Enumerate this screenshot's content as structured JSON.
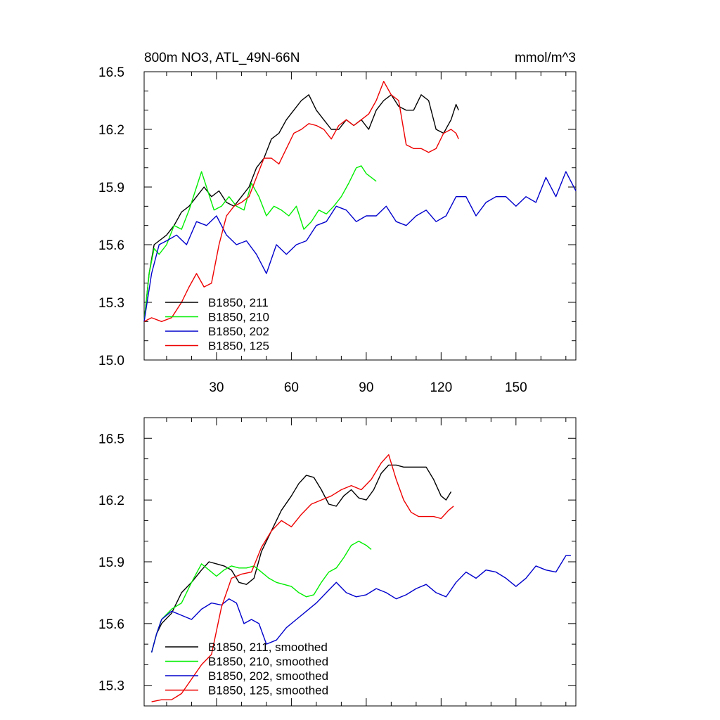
{
  "chart_data": [
    {
      "type": "line",
      "title": "800m NO3, ATL_49N-66N",
      "units": "mmol/m^3",
      "xlabel": "",
      "ylabel": "",
      "xlim": [
        1,
        174
      ],
      "ylim": [
        15.0,
        16.5
      ],
      "yticks": [
        "15.0",
        "15.3",
        "15.6",
        "15.9",
        "16.2",
        "16.5"
      ],
      "xticks": [
        "30",
        "60",
        "90",
        "120",
        "150"
      ],
      "xtick_values": [
        30,
        60,
        90,
        120,
        150
      ],
      "ytick_values": [
        15.0,
        15.3,
        15.6,
        15.9,
        16.2,
        16.5
      ],
      "legend_position": "bottom-left",
      "series": [
        {
          "name": "B1850, 211",
          "color": "#000000",
          "x": [
            1,
            3,
            5,
            7,
            10,
            13,
            16,
            19,
            22,
            25,
            28,
            31,
            34,
            37,
            40,
            43,
            46,
            49,
            52,
            55,
            58,
            61,
            64,
            67,
            70,
            73,
            76,
            79,
            82,
            85,
            88,
            91,
            94,
            97,
            100,
            103,
            106,
            109,
            112,
            115,
            118,
            121,
            124,
            126,
            127
          ],
          "values": [
            15.2,
            15.45,
            15.6,
            15.62,
            15.65,
            15.7,
            15.77,
            15.8,
            15.85,
            15.9,
            15.85,
            15.88,
            15.82,
            15.8,
            15.85,
            15.9,
            16.0,
            16.05,
            16.15,
            16.18,
            16.25,
            16.3,
            16.35,
            16.38,
            16.3,
            16.25,
            16.2,
            16.2,
            16.25,
            16.22,
            16.25,
            16.2,
            16.3,
            16.35,
            16.38,
            16.32,
            16.3,
            16.3,
            16.38,
            16.35,
            16.2,
            16.18,
            16.25,
            16.33,
            16.3
          ]
        },
        {
          "name": "B1850, 210",
          "color": "#00ee00",
          "x": [
            1,
            3,
            5,
            7,
            10,
            13,
            16,
            19,
            22,
            24,
            26,
            29,
            32,
            35,
            38,
            41,
            44,
            47,
            50,
            53,
            56,
            59,
            62,
            65,
            68,
            71,
            74,
            77,
            80,
            83,
            86,
            88,
            90,
            92,
            94
          ],
          "values": [
            15.2,
            15.45,
            15.58,
            15.55,
            15.6,
            15.7,
            15.68,
            15.78,
            15.9,
            15.98,
            15.9,
            15.78,
            15.8,
            15.85,
            15.8,
            15.78,
            15.92,
            15.85,
            15.75,
            15.8,
            15.78,
            15.75,
            15.8,
            15.68,
            15.72,
            15.78,
            15.76,
            15.8,
            15.85,
            15.92,
            16.0,
            16.01,
            15.97,
            15.95,
            15.93
          ]
        },
        {
          "name": "B1850, 202",
          "color": "#0000cc",
          "x": [
            1,
            4,
            7,
            10,
            14,
            18,
            22,
            26,
            30,
            34,
            38,
            42,
            46,
            50,
            54,
            58,
            62,
            66,
            70,
            74,
            78,
            82,
            86,
            90,
            94,
            98,
            102,
            106,
            110,
            114,
            118,
            122,
            126,
            130,
            134,
            138,
            142,
            146,
            150,
            154,
            158,
            162,
            166,
            170,
            174
          ],
          "values": [
            15.2,
            15.45,
            15.6,
            15.62,
            15.65,
            15.6,
            15.72,
            15.7,
            15.75,
            15.65,
            15.6,
            15.62,
            15.55,
            15.45,
            15.6,
            15.55,
            15.6,
            15.62,
            15.7,
            15.72,
            15.8,
            15.78,
            15.72,
            15.75,
            15.75,
            15.8,
            15.72,
            15.7,
            15.75,
            15.78,
            15.72,
            15.75,
            15.85,
            15.85,
            15.75,
            15.82,
            15.85,
            15.85,
            15.8,
            15.85,
            15.82,
            15.95,
            15.85,
            15.98,
            15.88
          ]
        },
        {
          "name": "B1850, 125",
          "color": "#ee0000",
          "x": [
            1,
            4,
            8,
            12,
            16,
            19,
            22,
            25,
            28,
            31,
            34,
            37,
            40,
            43,
            46,
            49,
            52,
            55,
            58,
            61,
            64,
            67,
            70,
            73,
            76,
            79,
            82,
            85,
            88,
            91,
            94,
            97,
            100,
            103,
            106,
            109,
            112,
            115,
            118,
            121,
            124,
            126,
            127
          ],
          "values": [
            15.2,
            15.22,
            15.2,
            15.22,
            15.3,
            15.38,
            15.45,
            15.38,
            15.4,
            15.6,
            15.75,
            15.8,
            15.82,
            15.85,
            15.95,
            16.05,
            16.05,
            16.02,
            16.1,
            16.18,
            16.2,
            16.23,
            16.22,
            16.2,
            16.15,
            16.22,
            16.25,
            16.22,
            16.25,
            16.28,
            16.35,
            16.45,
            16.38,
            16.35,
            16.12,
            16.1,
            16.1,
            16.08,
            16.1,
            16.18,
            16.2,
            16.18,
            16.15
          ]
        }
      ]
    },
    {
      "type": "line",
      "title": "",
      "units": "",
      "xlabel": "",
      "ylabel": "",
      "xlim": [
        1,
        174
      ],
      "ylim": [
        15.2,
        16.6
      ],
      "yticks": [
        "15.3",
        "15.6",
        "15.9",
        "16.2",
        "16.5"
      ],
      "ytick_values": [
        15.3,
        15.6,
        15.9,
        16.2,
        16.5
      ],
      "xtick_values": [
        30,
        60,
        90,
        120,
        150
      ],
      "legend_position": "bottom-left",
      "series": [
        {
          "name": "B1850, 211, smoothed",
          "color": "#000000",
          "x": [
            4,
            6,
            8,
            12,
            16,
            20,
            24,
            27,
            30,
            33,
            36,
            39,
            42,
            45,
            48,
            52,
            56,
            60,
            63,
            66,
            69,
            72,
            75,
            78,
            81,
            84,
            87,
            90,
            93,
            96,
            99,
            102,
            105,
            108,
            111,
            114,
            117,
            120,
            122,
            124
          ],
          "values": [
            15.46,
            15.55,
            15.6,
            15.65,
            15.75,
            15.8,
            15.86,
            15.9,
            15.89,
            15.88,
            15.86,
            15.8,
            15.79,
            15.82,
            15.95,
            16.05,
            16.15,
            16.22,
            16.28,
            16.32,
            16.31,
            16.25,
            16.18,
            16.17,
            16.22,
            16.25,
            16.21,
            16.2,
            16.25,
            16.33,
            16.37,
            16.37,
            16.36,
            16.36,
            16.36,
            16.36,
            16.3,
            16.22,
            16.2,
            16.24
          ]
        },
        {
          "name": "B1850, 210, smoothed",
          "color": "#00ee00",
          "x": [
            4,
            6,
            8,
            12,
            16,
            20,
            24,
            27,
            30,
            33,
            36,
            39,
            42,
            45,
            48,
            51,
            54,
            57,
            60,
            63,
            66,
            69,
            72,
            75,
            78,
            81,
            84,
            87,
            90,
            92
          ],
          "values": [
            15.46,
            15.55,
            15.62,
            15.67,
            15.7,
            15.8,
            15.89,
            15.86,
            15.83,
            15.86,
            15.88,
            15.87,
            15.87,
            15.88,
            15.85,
            15.82,
            15.8,
            15.79,
            15.78,
            15.75,
            15.73,
            15.74,
            15.8,
            15.85,
            15.87,
            15.92,
            15.98,
            16.0,
            15.98,
            15.96
          ]
        },
        {
          "name": "B1850, 202, smoothed",
          "color": "#0000cc",
          "x": [
            4,
            6,
            8,
            12,
            16,
            20,
            24,
            28,
            32,
            35,
            38,
            41,
            44,
            47,
            50,
            54,
            58,
            62,
            66,
            70,
            74,
            78,
            82,
            86,
            90,
            94,
            98,
            102,
            106,
            110,
            114,
            118,
            122,
            126,
            130,
            134,
            138,
            142,
            146,
            150,
            154,
            158,
            162,
            166,
            170,
            172
          ],
          "values": [
            15.46,
            15.55,
            15.62,
            15.66,
            15.64,
            15.62,
            15.67,
            15.7,
            15.69,
            15.72,
            15.7,
            15.6,
            15.62,
            15.6,
            15.5,
            15.52,
            15.58,
            15.62,
            15.66,
            15.7,
            15.75,
            15.8,
            15.75,
            15.73,
            15.74,
            15.77,
            15.75,
            15.72,
            15.74,
            15.77,
            15.79,
            15.75,
            15.73,
            15.8,
            15.85,
            15.82,
            15.86,
            15.85,
            15.82,
            15.78,
            15.82,
            15.88,
            15.86,
            15.85,
            15.93,
            15.93
          ]
        },
        {
          "name": "B1850, 125, smoothed",
          "color": "#ee0000",
          "x": [
            4,
            8,
            12,
            16,
            20,
            24,
            28,
            32,
            36,
            40,
            44,
            48,
            52,
            56,
            60,
            64,
            68,
            72,
            76,
            80,
            84,
            88,
            92,
            96,
            99,
            102,
            105,
            108,
            111,
            114,
            117,
            120,
            123,
            125
          ],
          "values": [
            15.22,
            15.23,
            15.23,
            15.26,
            15.33,
            15.4,
            15.45,
            15.68,
            15.82,
            15.84,
            15.85,
            15.97,
            16.05,
            16.1,
            16.07,
            16.13,
            16.18,
            16.2,
            16.22,
            16.25,
            16.27,
            16.25,
            16.3,
            16.38,
            16.42,
            16.3,
            16.2,
            16.14,
            16.12,
            16.12,
            16.12,
            16.11,
            16.15,
            16.17
          ]
        }
      ]
    }
  ]
}
